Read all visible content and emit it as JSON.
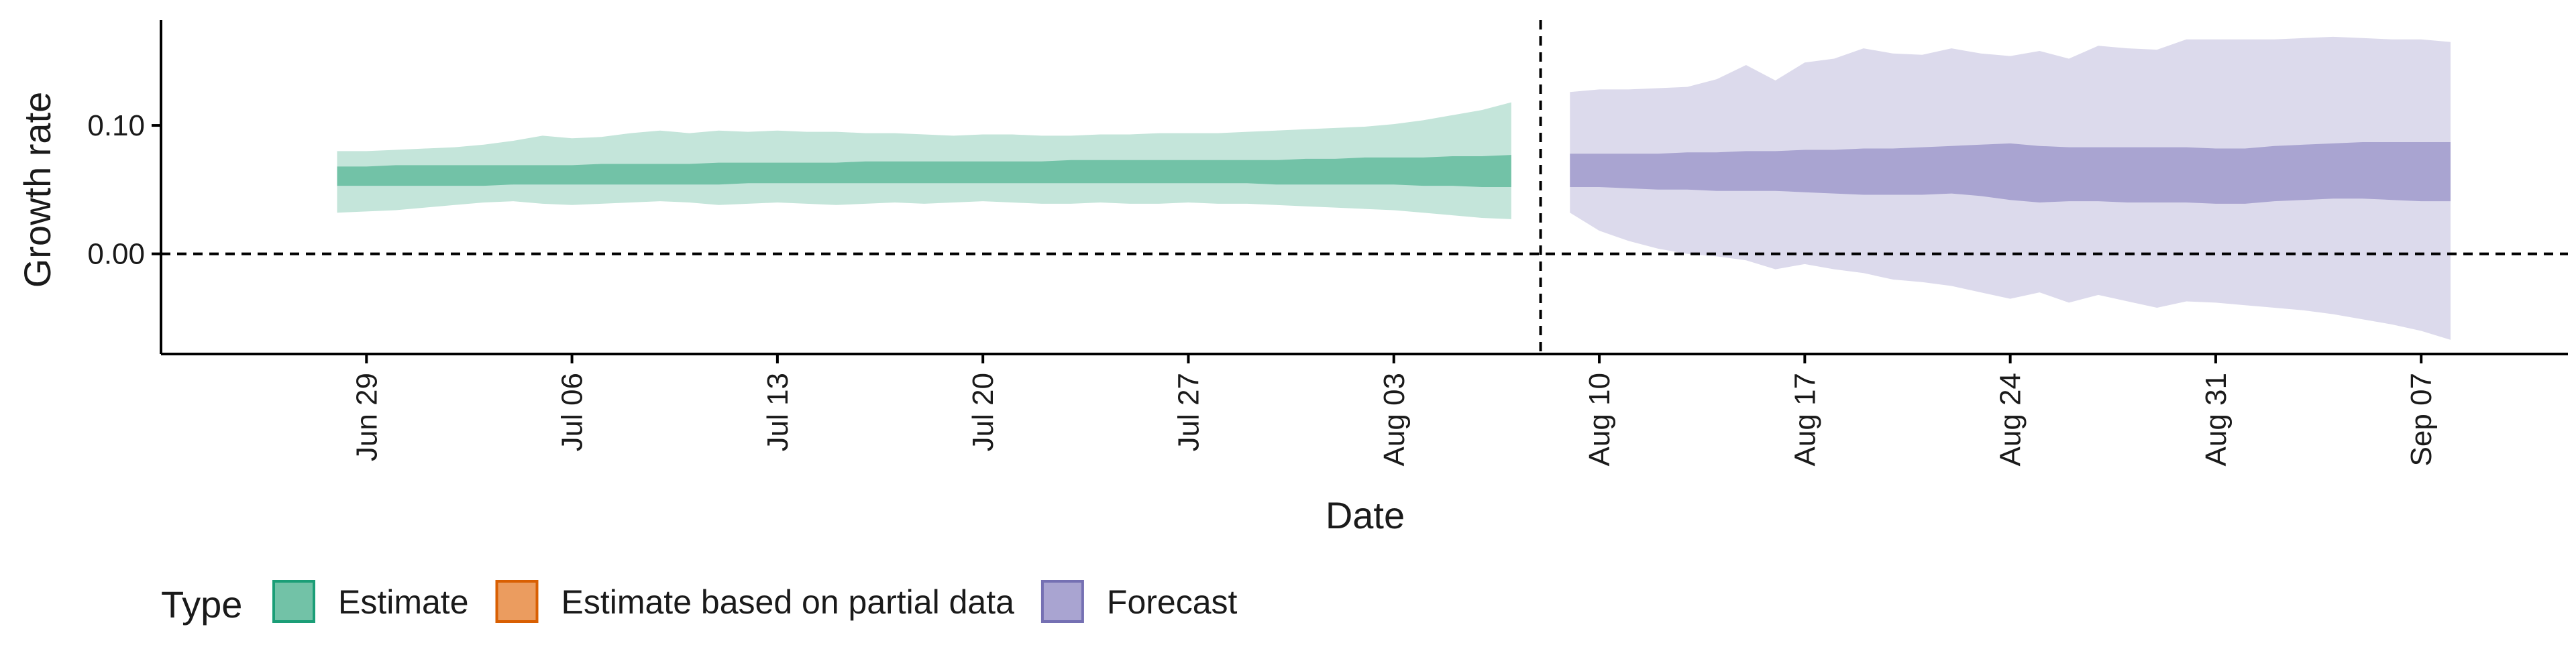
{
  "chart_data": {
    "type": "area",
    "xlabel": "Date",
    "ylabel": "Growth rate",
    "y_ticks": [
      {
        "value": 0.0,
        "label": "0.00"
      },
      {
        "value": 0.1,
        "label": "0.10"
      }
    ],
    "ylim": [
      -0.078,
      0.182
    ],
    "xlim": [
      "2021-06-22",
      "2021-09-12"
    ],
    "x_ticks": [
      {
        "date": "2021-06-29",
        "label": "Jun 29"
      },
      {
        "date": "2021-07-06",
        "label": "Jul 06"
      },
      {
        "date": "2021-07-13",
        "label": "Jul 13"
      },
      {
        "date": "2021-07-20",
        "label": "Jul 20"
      },
      {
        "date": "2021-07-27",
        "label": "Jul 27"
      },
      {
        "date": "2021-08-03",
        "label": "Aug 03"
      },
      {
        "date": "2021-08-10",
        "label": "Aug 10"
      },
      {
        "date": "2021-08-17",
        "label": "Aug 17"
      },
      {
        "date": "2021-08-24",
        "label": "Aug 24"
      },
      {
        "date": "2021-08-31",
        "label": "Aug 31"
      },
      {
        "date": "2021-09-07",
        "label": "Sep 07"
      }
    ],
    "reference_lines": [
      {
        "orientation": "horizontal",
        "value": 0.0,
        "style": "dashed"
      },
      {
        "orientation": "vertical",
        "date": "2021-08-08",
        "style": "dashed"
      }
    ],
    "grid": false,
    "legend": {
      "title": "Type",
      "position": "bottom-left",
      "items": [
        {
          "label": "Estimate",
          "fill": "#72c2a7",
          "stroke": "#1b9e77"
        },
        {
          "label": "Estimate based on partial data",
          "fill": "#eb9c5f",
          "stroke": "#d95f02"
        },
        {
          "label": "Forecast",
          "fill": "#a9a4d1",
          "stroke": "#7570b3"
        }
      ]
    },
    "series": [
      {
        "name": "Estimate",
        "color": "#1b9e77",
        "outer_fill": "#c4e5da",
        "inner_fill": "#72c2a7",
        "x": [
          "2021-06-28",
          "2021-06-29",
          "2021-06-30",
          "2021-07-01",
          "2021-07-02",
          "2021-07-03",
          "2021-07-04",
          "2021-07-05",
          "2021-07-06",
          "2021-07-07",
          "2021-07-08",
          "2021-07-09",
          "2021-07-10",
          "2021-07-11",
          "2021-07-12",
          "2021-07-13",
          "2021-07-14",
          "2021-07-15",
          "2021-07-16",
          "2021-07-17",
          "2021-07-18",
          "2021-07-19",
          "2021-07-20",
          "2021-07-21",
          "2021-07-22",
          "2021-07-23",
          "2021-07-24",
          "2021-07-25",
          "2021-07-26",
          "2021-07-27",
          "2021-07-28",
          "2021-07-29",
          "2021-07-30",
          "2021-07-31",
          "2021-08-01",
          "2021-08-02",
          "2021-08-03",
          "2021-08-04",
          "2021-08-05",
          "2021-08-06",
          "2021-08-07"
        ],
        "outer_upper": [
          0.08,
          0.08,
          0.081,
          0.082,
          0.083,
          0.085,
          0.088,
          0.092,
          0.09,
          0.091,
          0.094,
          0.096,
          0.094,
          0.096,
          0.095,
          0.096,
          0.095,
          0.095,
          0.094,
          0.094,
          0.093,
          0.092,
          0.093,
          0.093,
          0.092,
          0.092,
          0.093,
          0.093,
          0.094,
          0.094,
          0.094,
          0.095,
          0.096,
          0.097,
          0.098,
          0.099,
          0.101,
          0.104,
          0.108,
          0.112,
          0.118
        ],
        "outer_lower": [
          0.032,
          0.033,
          0.034,
          0.036,
          0.038,
          0.04,
          0.041,
          0.039,
          0.038,
          0.039,
          0.04,
          0.041,
          0.04,
          0.038,
          0.039,
          0.04,
          0.039,
          0.038,
          0.039,
          0.04,
          0.039,
          0.04,
          0.041,
          0.04,
          0.039,
          0.039,
          0.04,
          0.039,
          0.039,
          0.04,
          0.039,
          0.039,
          0.038,
          0.037,
          0.036,
          0.035,
          0.034,
          0.032,
          0.03,
          0.028,
          0.027
        ],
        "inner_upper": [
          0.068,
          0.068,
          0.069,
          0.069,
          0.069,
          0.069,
          0.069,
          0.069,
          0.069,
          0.07,
          0.07,
          0.07,
          0.07,
          0.071,
          0.071,
          0.071,
          0.071,
          0.071,
          0.072,
          0.072,
          0.072,
          0.072,
          0.072,
          0.072,
          0.072,
          0.073,
          0.073,
          0.073,
          0.073,
          0.073,
          0.073,
          0.073,
          0.073,
          0.074,
          0.074,
          0.075,
          0.075,
          0.075,
          0.076,
          0.076,
          0.077
        ],
        "inner_lower": [
          0.053,
          0.053,
          0.053,
          0.053,
          0.053,
          0.053,
          0.054,
          0.054,
          0.054,
          0.054,
          0.054,
          0.054,
          0.054,
          0.054,
          0.055,
          0.055,
          0.055,
          0.055,
          0.055,
          0.055,
          0.055,
          0.055,
          0.055,
          0.055,
          0.055,
          0.055,
          0.055,
          0.055,
          0.055,
          0.055,
          0.055,
          0.055,
          0.054,
          0.054,
          0.054,
          0.054,
          0.054,
          0.053,
          0.053,
          0.052,
          0.052
        ]
      },
      {
        "name": "Forecast",
        "color": "#7570b3",
        "outer_fill": "#dcdaec",
        "inner_fill": "#a9a4d1",
        "x": [
          "2021-08-09",
          "2021-08-10",
          "2021-08-11",
          "2021-08-12",
          "2021-08-13",
          "2021-08-14",
          "2021-08-15",
          "2021-08-16",
          "2021-08-17",
          "2021-08-18",
          "2021-08-19",
          "2021-08-20",
          "2021-08-21",
          "2021-08-22",
          "2021-08-23",
          "2021-08-24",
          "2021-08-25",
          "2021-08-26",
          "2021-08-27",
          "2021-08-28",
          "2021-08-29",
          "2021-08-30",
          "2021-08-31",
          "2021-09-01",
          "2021-09-02",
          "2021-09-03",
          "2021-09-04",
          "2021-09-05",
          "2021-09-06",
          "2021-09-07",
          "2021-09-08"
        ],
        "outer_upper": [
          0.126,
          0.128,
          0.128,
          0.129,
          0.13,
          0.136,
          0.147,
          0.135,
          0.149,
          0.152,
          0.16,
          0.156,
          0.155,
          0.16,
          0.156,
          0.154,
          0.158,
          0.152,
          0.162,
          0.16,
          0.159,
          0.167,
          0.167,
          0.167,
          0.167,
          0.168,
          0.169,
          0.168,
          0.167,
          0.167,
          0.165
        ],
        "outer_lower": [
          0.032,
          0.018,
          0.01,
          0.004,
          0.0,
          -0.002,
          -0.005,
          -0.012,
          -0.008,
          -0.012,
          -0.015,
          -0.02,
          -0.022,
          -0.025,
          -0.03,
          -0.035,
          -0.03,
          -0.038,
          -0.032,
          -0.037,
          -0.042,
          -0.037,
          -0.038,
          -0.04,
          -0.042,
          -0.044,
          -0.047,
          -0.051,
          -0.055,
          -0.06,
          -0.067
        ],
        "inner_upper": [
          0.078,
          0.078,
          0.078,
          0.078,
          0.079,
          0.079,
          0.08,
          0.08,
          0.081,
          0.081,
          0.082,
          0.082,
          0.083,
          0.084,
          0.085,
          0.086,
          0.084,
          0.083,
          0.083,
          0.083,
          0.083,
          0.083,
          0.082,
          0.082,
          0.084,
          0.085,
          0.086,
          0.087,
          0.087,
          0.087,
          0.087
        ],
        "inner_lower": [
          0.052,
          0.052,
          0.051,
          0.05,
          0.05,
          0.049,
          0.049,
          0.049,
          0.048,
          0.047,
          0.046,
          0.046,
          0.046,
          0.047,
          0.045,
          0.042,
          0.04,
          0.041,
          0.041,
          0.04,
          0.04,
          0.04,
          0.039,
          0.039,
          0.041,
          0.042,
          0.043,
          0.043,
          0.042,
          0.041,
          0.041
        ]
      }
    ]
  }
}
